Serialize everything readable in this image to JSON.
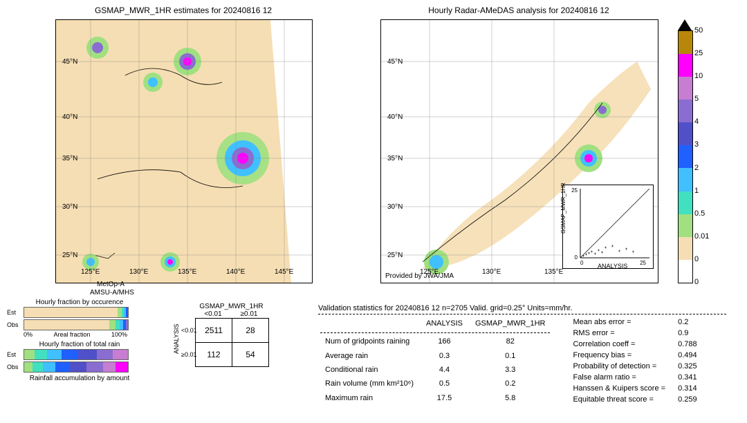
{
  "maps": {
    "left": {
      "title": "GSMAP_MWR_1HR estimates for 20240816 12",
      "satellite": "MetOp-A",
      "instrument": "AMSU-A/MHS",
      "xticks": [
        "125°E",
        "130°E",
        "135°E",
        "140°E",
        "145°E"
      ],
      "yticks": [
        "25°N",
        "30°N",
        "35°N",
        "40°N",
        "45°N"
      ],
      "bg_color": "#f5deb3"
    },
    "right": {
      "title": "Hourly Radar-AMeDAS analysis for 20240816 12",
      "provider": "Provided by JWA/JMA",
      "xticks": [
        "125°E",
        "130°E",
        "135°E"
      ],
      "yticks": [
        "25°N",
        "30°N",
        "35°N",
        "40°N",
        "45°N"
      ],
      "bg_color": "#ffffff"
    }
  },
  "scatter_inset": {
    "xlabel": "ANALYSIS",
    "ylabel": "GSMAP_MWR_1HR",
    "xlim": [
      0,
      25
    ],
    "ylim": [
      0,
      25
    ],
    "ticks": [
      0,
      5,
      10,
      15,
      20,
      25
    ]
  },
  "colorbar": {
    "levels": [
      50,
      25,
      10,
      5,
      4,
      3,
      2,
      1,
      0.5,
      0.01,
      0
    ],
    "colors": [
      "#b8860b",
      "#ff00ff",
      "#c77dd1",
      "#8a6dd0",
      "#5050c8",
      "#2060ff",
      "#40c0ff",
      "#40e0c0",
      "#a0e080",
      "#f5deb3",
      "#ffffff"
    ]
  },
  "fraction_bars": {
    "occurrence": {
      "title": "Hourly fraction by occurence",
      "rows": [
        "Est",
        "Obs"
      ],
      "axis_labels": [
        "0%",
        "Areal fraction",
        "100%"
      ],
      "est_segs": [
        {
          "c": "#f5deb3",
          "w": 90
        },
        {
          "c": "#a0e080",
          "w": 4
        },
        {
          "c": "#40e0c0",
          "w": 2
        },
        {
          "c": "#40c0ff",
          "w": 2
        },
        {
          "c": "#2060ff",
          "w": 2
        }
      ],
      "obs_segs": [
        {
          "c": "#f5deb3",
          "w": 82
        },
        {
          "c": "#a0e080",
          "w": 6
        },
        {
          "c": "#40e0c0",
          "w": 4
        },
        {
          "c": "#40c0ff",
          "w": 3
        },
        {
          "c": "#2060ff",
          "w": 3
        },
        {
          "c": "#8a6dd0",
          "w": 2
        }
      ]
    },
    "total_rain": {
      "title": "Hourly fraction of total rain",
      "rows": [
        "Est",
        "Obs"
      ],
      "est_segs": [
        {
          "c": "#a0e080",
          "w": 10
        },
        {
          "c": "#40e0c0",
          "w": 12
        },
        {
          "c": "#40c0ff",
          "w": 14
        },
        {
          "c": "#2060ff",
          "w": 16
        },
        {
          "c": "#5050c8",
          "w": 18
        },
        {
          "c": "#8a6dd0",
          "w": 15
        },
        {
          "c": "#c77dd1",
          "w": 15
        }
      ],
      "obs_segs": [
        {
          "c": "#a0e080",
          "w": 8
        },
        {
          "c": "#40e0c0",
          "w": 10
        },
        {
          "c": "#40c0ff",
          "w": 12
        },
        {
          "c": "#2060ff",
          "w": 14
        },
        {
          "c": "#5050c8",
          "w": 16
        },
        {
          "c": "#8a6dd0",
          "w": 16
        },
        {
          "c": "#c77dd1",
          "w": 12
        },
        {
          "c": "#ff00ff",
          "w": 12
        }
      ]
    },
    "accumulation_title": "Rainfall accumulation by amount"
  },
  "contingency": {
    "col_header": "GSMAP_MWR_1HR",
    "row_header": "ANALYSIS",
    "col_labels": [
      "<0.01",
      "≥0.01"
    ],
    "row_labels": [
      "<0.01",
      "≥0.01"
    ],
    "cells": [
      [
        2511,
        28
      ],
      [
        112,
        54
      ]
    ]
  },
  "validation": {
    "title": "Validation statistics for 20240816 12  n=2705 Valid. grid=0.25° Units=mm/hr.",
    "col_headers": [
      "",
      "ANALYSIS",
      "GSMAP_MWR_1HR"
    ],
    "rows": [
      {
        "label": "Num of gridpoints raining",
        "a": "166",
        "b": "82"
      },
      {
        "label": "Average rain",
        "a": "0.3",
        "b": "0.1"
      },
      {
        "label": "Conditional rain",
        "a": "4.4",
        "b": "3.3"
      },
      {
        "label": "Rain volume (mm km²10⁶)",
        "a": "0.5",
        "b": "0.2"
      },
      {
        "label": "Maximum rain",
        "a": "17.5",
        "b": "5.8"
      }
    ],
    "metrics": [
      {
        "label": "Mean abs error =",
        "v": "0.2"
      },
      {
        "label": "RMS error =",
        "v": "0.9"
      },
      {
        "label": "Correlation coeff =",
        "v": "0.788"
      },
      {
        "label": "Frequency bias =",
        "v": "0.494"
      },
      {
        "label": "Probability of detection =",
        "v": "0.325"
      },
      {
        "label": "False alarm ratio =",
        "v": "0.341"
      },
      {
        "label": "Hanssen & Kuipers score =",
        "v": "0.314"
      },
      {
        "label": "Equitable threat score =",
        "v": "0.259"
      }
    ]
  }
}
